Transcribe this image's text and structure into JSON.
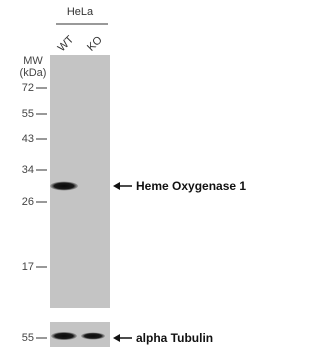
{
  "header": {
    "cell_line": "HeLa",
    "lanes": [
      "WT",
      "KO"
    ]
  },
  "mw_label": {
    "line1": "MW",
    "line2": "(kDa)"
  },
  "upper_panel": {
    "markers": [
      "72",
      "55",
      "43",
      "34",
      "26",
      "17"
    ],
    "target": "Heme Oxygenase 1"
  },
  "lower_panel": {
    "markers": [
      "55"
    ],
    "target": "alpha Tubulin"
  }
}
